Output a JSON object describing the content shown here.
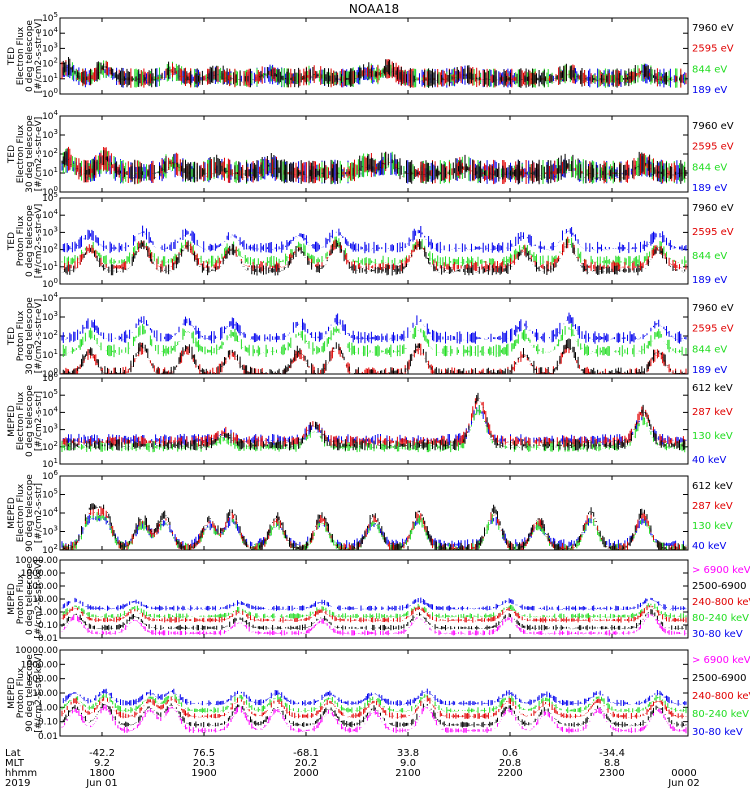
{
  "title": "NOAA18",
  "colors": {
    "black": "#000000",
    "red": "#e00000",
    "green": "#22dd22",
    "blue": "#0000ee",
    "magenta": "#ff00ff"
  },
  "chart_data": {
    "type": "line",
    "x_axis": {
      "ticks": [
        {
          "lat": "-42.2",
          "mlt": "9.2",
          "hhmm": "1800",
          "date": "Jun 01"
        },
        {
          "lat": "76.5",
          "mlt": "20.3",
          "hhmm": "1900",
          "date": ""
        },
        {
          "lat": "-68.1",
          "mlt": "20.2",
          "hhmm": "2000",
          "date": ""
        },
        {
          "lat": "33.8",
          "mlt": "9.0",
          "hhmm": "2100",
          "date": ""
        },
        {
          "lat": "0.6",
          "mlt": "20.8",
          "hhmm": "2200",
          "date": ""
        },
        {
          "lat": "-34.4",
          "mlt": "8.8",
          "hhmm": "2300",
          "date": ""
        },
        {
          "lat": "",
          "mlt": "",
          "hhmm": "0000",
          "date": "Jun 02"
        }
      ],
      "row_labels": [
        "Lat",
        "MLT",
        "hhmm",
        "2019"
      ]
    },
    "panels": [
      {
        "id": "ted-e-0",
        "ylabel": [
          "TED",
          "Electron Flux",
          "0 deg telescope",
          "[#/cm2-s-str-eV]"
        ],
        "yticks": [
          "10^0",
          "10^1",
          "10^2",
          "10^3",
          "10^4",
          "10^5"
        ],
        "ylim": [
          0,
          5
        ],
        "log": true,
        "legend": [
          {
            "label": "7960 eV",
            "color": "#000000"
          },
          {
            "label": "2595 eV",
            "color": "#e00000"
          },
          {
            "label": "844 eV",
            "color": "#22dd22"
          },
          {
            "label": "189 eV",
            "color": "#0000ee"
          }
        ],
        "bases": [
          1,
          1,
          1,
          1
        ],
        "noise": 1.0,
        "bumps": [
          [
            1,
            0.8
          ],
          [
            6,
            0.8
          ],
          [
            15,
            0.6
          ],
          [
            21,
            0.3
          ],
          [
            28,
            0.4
          ],
          [
            34,
            0.3
          ],
          [
            41,
            0.5
          ],
          [
            44,
            0.7
          ],
          [
            54,
            0.3
          ],
          [
            68,
            0.4
          ],
          [
            78,
            0.5
          ]
        ]
      },
      {
        "id": "ted-e-30",
        "ylabel": [
          "TED",
          "Electron Flux",
          "30 deg telescope",
          "[#/cm2-s-str-eV]"
        ],
        "yticks": [
          "10^0",
          "10^1",
          "10^2",
          "10^3",
          "10^4"
        ],
        "ylim": [
          0,
          4
        ],
        "log": true,
        "legend": [
          {
            "label": "7960 eV",
            "color": "#000000"
          },
          {
            "label": "2595 eV",
            "color": "#e00000"
          },
          {
            "label": "844 eV",
            "color": "#22dd22"
          },
          {
            "label": "189 eV",
            "color": "#0000ee"
          }
        ],
        "bases": [
          1,
          1,
          1,
          1
        ],
        "noise": 1.0,
        "bumps": [
          [
            1,
            0.8
          ],
          [
            6,
            0.8
          ],
          [
            15,
            0.6
          ],
          [
            21,
            0.3
          ],
          [
            28,
            0.4
          ],
          [
            41,
            0.5
          ],
          [
            44,
            0.7
          ],
          [
            54,
            0.3
          ],
          [
            68,
            0.4
          ],
          [
            78,
            0.5
          ]
        ]
      },
      {
        "id": "ted-p-0",
        "ylabel": [
          "TED",
          "Proton Flux",
          "0 deg telescope",
          "[#/cm2-s-str-eV]"
        ],
        "yticks": [
          "10^0",
          "10^1",
          "10^2",
          "10^3",
          "10^4",
          "10^5"
        ],
        "ylim": [
          0,
          5
        ],
        "log": true,
        "legend": [
          {
            "label": "7960 eV",
            "color": "#000000"
          },
          {
            "label": "2595 eV",
            "color": "#e00000"
          },
          {
            "label": "844 eV",
            "color": "#22dd22"
          },
          {
            "label": "189 eV",
            "color": "#0000ee"
          }
        ],
        "bases": [
          0.8,
          1.0,
          1.3,
          2.1
        ],
        "noise": 0.5,
        "bumps": [
          [
            4,
            1.2
          ],
          [
            11,
            1.5
          ],
          [
            17,
            1.4
          ],
          [
            23,
            1.2
          ],
          [
            32,
            1.2
          ],
          [
            37,
            1.5
          ],
          [
            48,
            1.5
          ],
          [
            62,
            1.1
          ],
          [
            68,
            1.6
          ],
          [
            80,
            1.2
          ]
        ]
      },
      {
        "id": "ted-p-30",
        "ylabel": [
          "TED",
          "Proton Flux",
          "30 deg telescope",
          "[#/cm2-s-str-eV]"
        ],
        "yticks": [
          "10^0",
          "10^1",
          "10^2",
          "10^3",
          "10^4"
        ],
        "ylim": [
          0,
          4
        ],
        "log": true,
        "legend": [
          {
            "label": "7960 eV",
            "color": "#000000"
          },
          {
            "label": "2595 eV",
            "color": "#e00000"
          },
          {
            "label": "844 eV",
            "color": "#22dd22"
          },
          {
            "label": "189 eV",
            "color": "#0000ee"
          }
        ],
        "bases": [
          0,
          0,
          1.2,
          1.9
        ],
        "noise": 0.5,
        "bumps": [
          [
            4,
            1.2
          ],
          [
            11,
            1.5
          ],
          [
            17,
            1.4
          ],
          [
            23,
            1.2
          ],
          [
            32,
            1.2
          ],
          [
            37,
            1.5
          ],
          [
            48,
            1.5
          ],
          [
            62,
            1.1
          ],
          [
            68,
            1.6
          ],
          [
            80,
            1.2
          ]
        ]
      },
      {
        "id": "meped-e-0",
        "ylabel": [
          "MEPED",
          "Electron Flux",
          "0 deg telescope",
          "[#/cm2-s-str]"
        ],
        "yticks": [
          "10^1",
          "10^2",
          "10^3",
          "10^4",
          "10^5",
          "10^6"
        ],
        "ylim": [
          1,
          6
        ],
        "log": true,
        "legend": [
          {
            "label": "612 keV",
            "color": "#000000"
          },
          {
            "label": "287 keV",
            "color": "#e00000"
          },
          {
            "label": "130 keV",
            "color": "#22dd22"
          },
          {
            "label": "40 keV",
            "color": "#0000ee"
          }
        ],
        "bases": [
          2.1,
          2.3,
          2.0,
          2.4
        ],
        "noise": 0.5,
        "bumps": [
          [
            22,
            0.6
          ],
          [
            34,
            1.2
          ],
          [
            56,
            2.8
          ],
          [
            78,
            2.0
          ]
        ]
      },
      {
        "id": "meped-e-90",
        "ylabel": [
          "MEPED",
          "Electron Flux",
          "90 deg telescope",
          "[#/cm2-s-str]"
        ],
        "yticks": [
          "10^2",
          "10^3",
          "10^4",
          "10^5",
          "10^6"
        ],
        "ylim": [
          2,
          6
        ],
        "log": true,
        "legend": [
          {
            "label": "612 keV",
            "color": "#000000"
          },
          {
            "label": "287 keV",
            "color": "#e00000"
          },
          {
            "label": "130 keV",
            "color": "#22dd22"
          },
          {
            "label": "40 keV",
            "color": "#0000ee"
          }
        ],
        "bases": [
          2.1,
          2.1,
          2.1,
          2.3
        ],
        "noise": 0.4,
        "bumps": [
          [
            4,
            2.0
          ],
          [
            6,
            2.0
          ],
          [
            11,
            1.6
          ],
          [
            14,
            1.8
          ],
          [
            20,
            1.6
          ],
          [
            23,
            2.0
          ],
          [
            29,
            1.7
          ],
          [
            35,
            1.8
          ],
          [
            42,
            1.8
          ],
          [
            48,
            2.0
          ],
          [
            58,
            2.1
          ],
          [
            64,
            1.6
          ],
          [
            71,
            2.0
          ],
          [
            78,
            2.0
          ]
        ]
      },
      {
        "id": "meped-p-0",
        "ylabel": [
          "MEPED",
          "Proton Flux",
          "0 deg telescope",
          "[#/cm2-s-str-keV]"
        ],
        "yticks": [
          "0.01",
          "0.10",
          "1.00",
          "10.00",
          "100.00",
          "1000.00",
          "10000.00"
        ],
        "ylim": [
          -2,
          4
        ],
        "log": true,
        "legend": [
          {
            "label": "> 6900 keV",
            "color": "#ff00ff"
          },
          {
            "label": "2500-6900",
            "color": "#000000"
          },
          {
            "label": "240-800 keV",
            "color": "#e00000"
          },
          {
            "label": "80-240 keV",
            "color": "#22dd22"
          },
          {
            "label": "30-80 keV",
            "color": "#0000ee"
          }
        ],
        "bases": [
          -1.6,
          -1.2,
          -0.6,
          -0.3,
          0.3
        ],
        "noise": 0.3,
        "bumps": [
          [
            2,
            1.2
          ],
          [
            10,
            1.0
          ],
          [
            24,
            0.8
          ],
          [
            35,
            0.9
          ],
          [
            48,
            1.2
          ],
          [
            60,
            1.1
          ],
          [
            79,
            1.4
          ]
        ]
      },
      {
        "id": "meped-p-90",
        "ylabel": [
          "MEPED",
          "Proton Flux",
          "90 deg telescope",
          "[#/cm2-s-str-keV]"
        ],
        "yticks": [
          "0.01",
          "0.10",
          "1.00",
          "10.00",
          "100.00",
          "1000.00",
          "10000.00"
        ],
        "ylim": [
          -2,
          4
        ],
        "log": true,
        "legend": [
          {
            "label": "> 6900 keV",
            "color": "#ff00ff"
          },
          {
            "label": "2500-6900",
            "color": "#000000"
          },
          {
            "label": "240-800 keV",
            "color": "#e00000"
          },
          {
            "label": "80-240 keV",
            "color": "#22dd22"
          },
          {
            "label": "30-80 keV",
            "color": "#0000ee"
          }
        ],
        "bases": [
          -1.6,
          -1.2,
          -0.6,
          -0.2,
          0.3
        ],
        "noise": 0.3,
        "bumps": [
          [
            2,
            1.4
          ],
          [
            6,
            1.6
          ],
          [
            12,
            1.4
          ],
          [
            15,
            1.6
          ],
          [
            24,
            1.5
          ],
          [
            29,
            1.4
          ],
          [
            36,
            1.3
          ],
          [
            42,
            1.3
          ],
          [
            49,
            1.6
          ],
          [
            60,
            1.4
          ],
          [
            65,
            1.2
          ],
          [
            72,
            1.4
          ],
          [
            80,
            1.4
          ]
        ]
      }
    ]
  }
}
